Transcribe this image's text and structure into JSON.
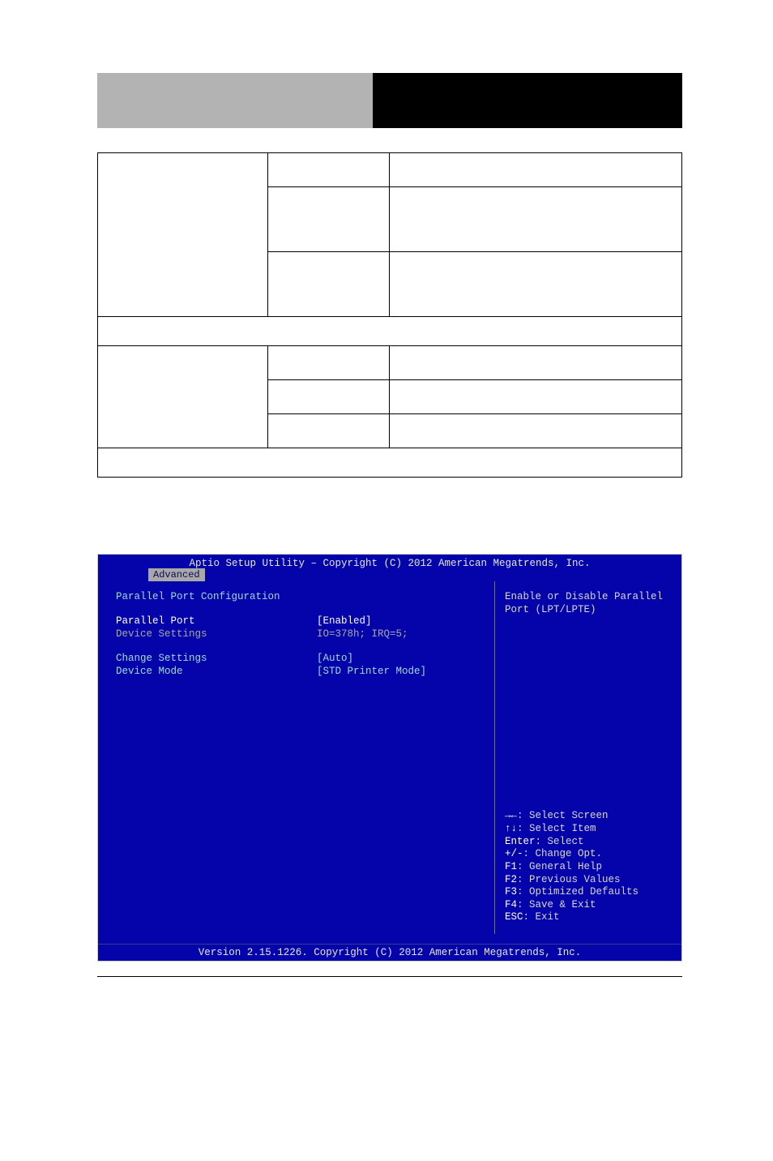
{
  "header": {
    "left_label": "",
    "right_label": ""
  },
  "table": {
    "rows": [
      {
        "c0": "",
        "c1": "",
        "c2": "",
        "h": "row-h",
        "span": false
      },
      {
        "c0": "",
        "c1": "",
        "c2": "",
        "h": "row-m",
        "span": false
      },
      {
        "c0": "",
        "c1": "",
        "c2": "",
        "h": "row-m",
        "span": false
      },
      {
        "span": true,
        "c": "",
        "h": "row-spacer"
      },
      {
        "c0": "",
        "c1": "",
        "c2": "",
        "h": "row-h",
        "span": false
      },
      {
        "c0": "",
        "c1": "",
        "c2": "",
        "h": "row-h",
        "span": false
      },
      {
        "c0": "",
        "c1": "",
        "c2": "",
        "h": "row-h",
        "span": false
      },
      {
        "span": true,
        "c": "",
        "h": "row-spacer"
      }
    ]
  },
  "bios": {
    "header_title": "Aptio Setup Utility – Copyright (C) 2012 American Megatrends, Inc.",
    "tab": "Advanced",
    "left": {
      "section_title": "Parallel Port Configuration",
      "rows": [
        {
          "label": "Parallel Port",
          "value": "[Enabled]",
          "label_class": "bios-white",
          "value_class": "bios-white"
        },
        {
          "label": "Device Settings",
          "value": "IO=378h; IRQ=5;",
          "label_class": "bios-grey",
          "value_class": "bios-grey"
        },
        {
          "spacer": true
        },
        {
          "label": "Change Settings",
          "value": "[Auto]",
          "label_class": "bios-cyan",
          "value_class": "bios-cyan"
        },
        {
          "label": "Device Mode",
          "value": "[STD Printer Mode]",
          "label_class": "bios-cyan",
          "value_class": "bios-cyan"
        }
      ]
    },
    "right": {
      "help_top": "Enable or Disable Parallel Port  (LPT/LPTE)",
      "legend": [
        {
          "sym": "→←",
          "text": ": Select Screen"
        },
        {
          "sym": "↑↓",
          "text": ": Select Item"
        },
        {
          "sym": "Enter",
          "text": ": Select"
        },
        {
          "sym": "+/-",
          "text": ": Change Opt."
        },
        {
          "sym": "F1",
          "text": ": General Help"
        },
        {
          "sym": "F2",
          "text": ": Previous Values"
        },
        {
          "sym": "F3",
          "text": ": Optimized Defaults"
        },
        {
          "sym": "F4",
          "text": ": Save & Exit"
        },
        {
          "sym": "ESC",
          "text": ": Exit"
        }
      ]
    },
    "footer": "Version 2.15.1226. Copyright (C) 2012 American Megatrends, Inc."
  }
}
